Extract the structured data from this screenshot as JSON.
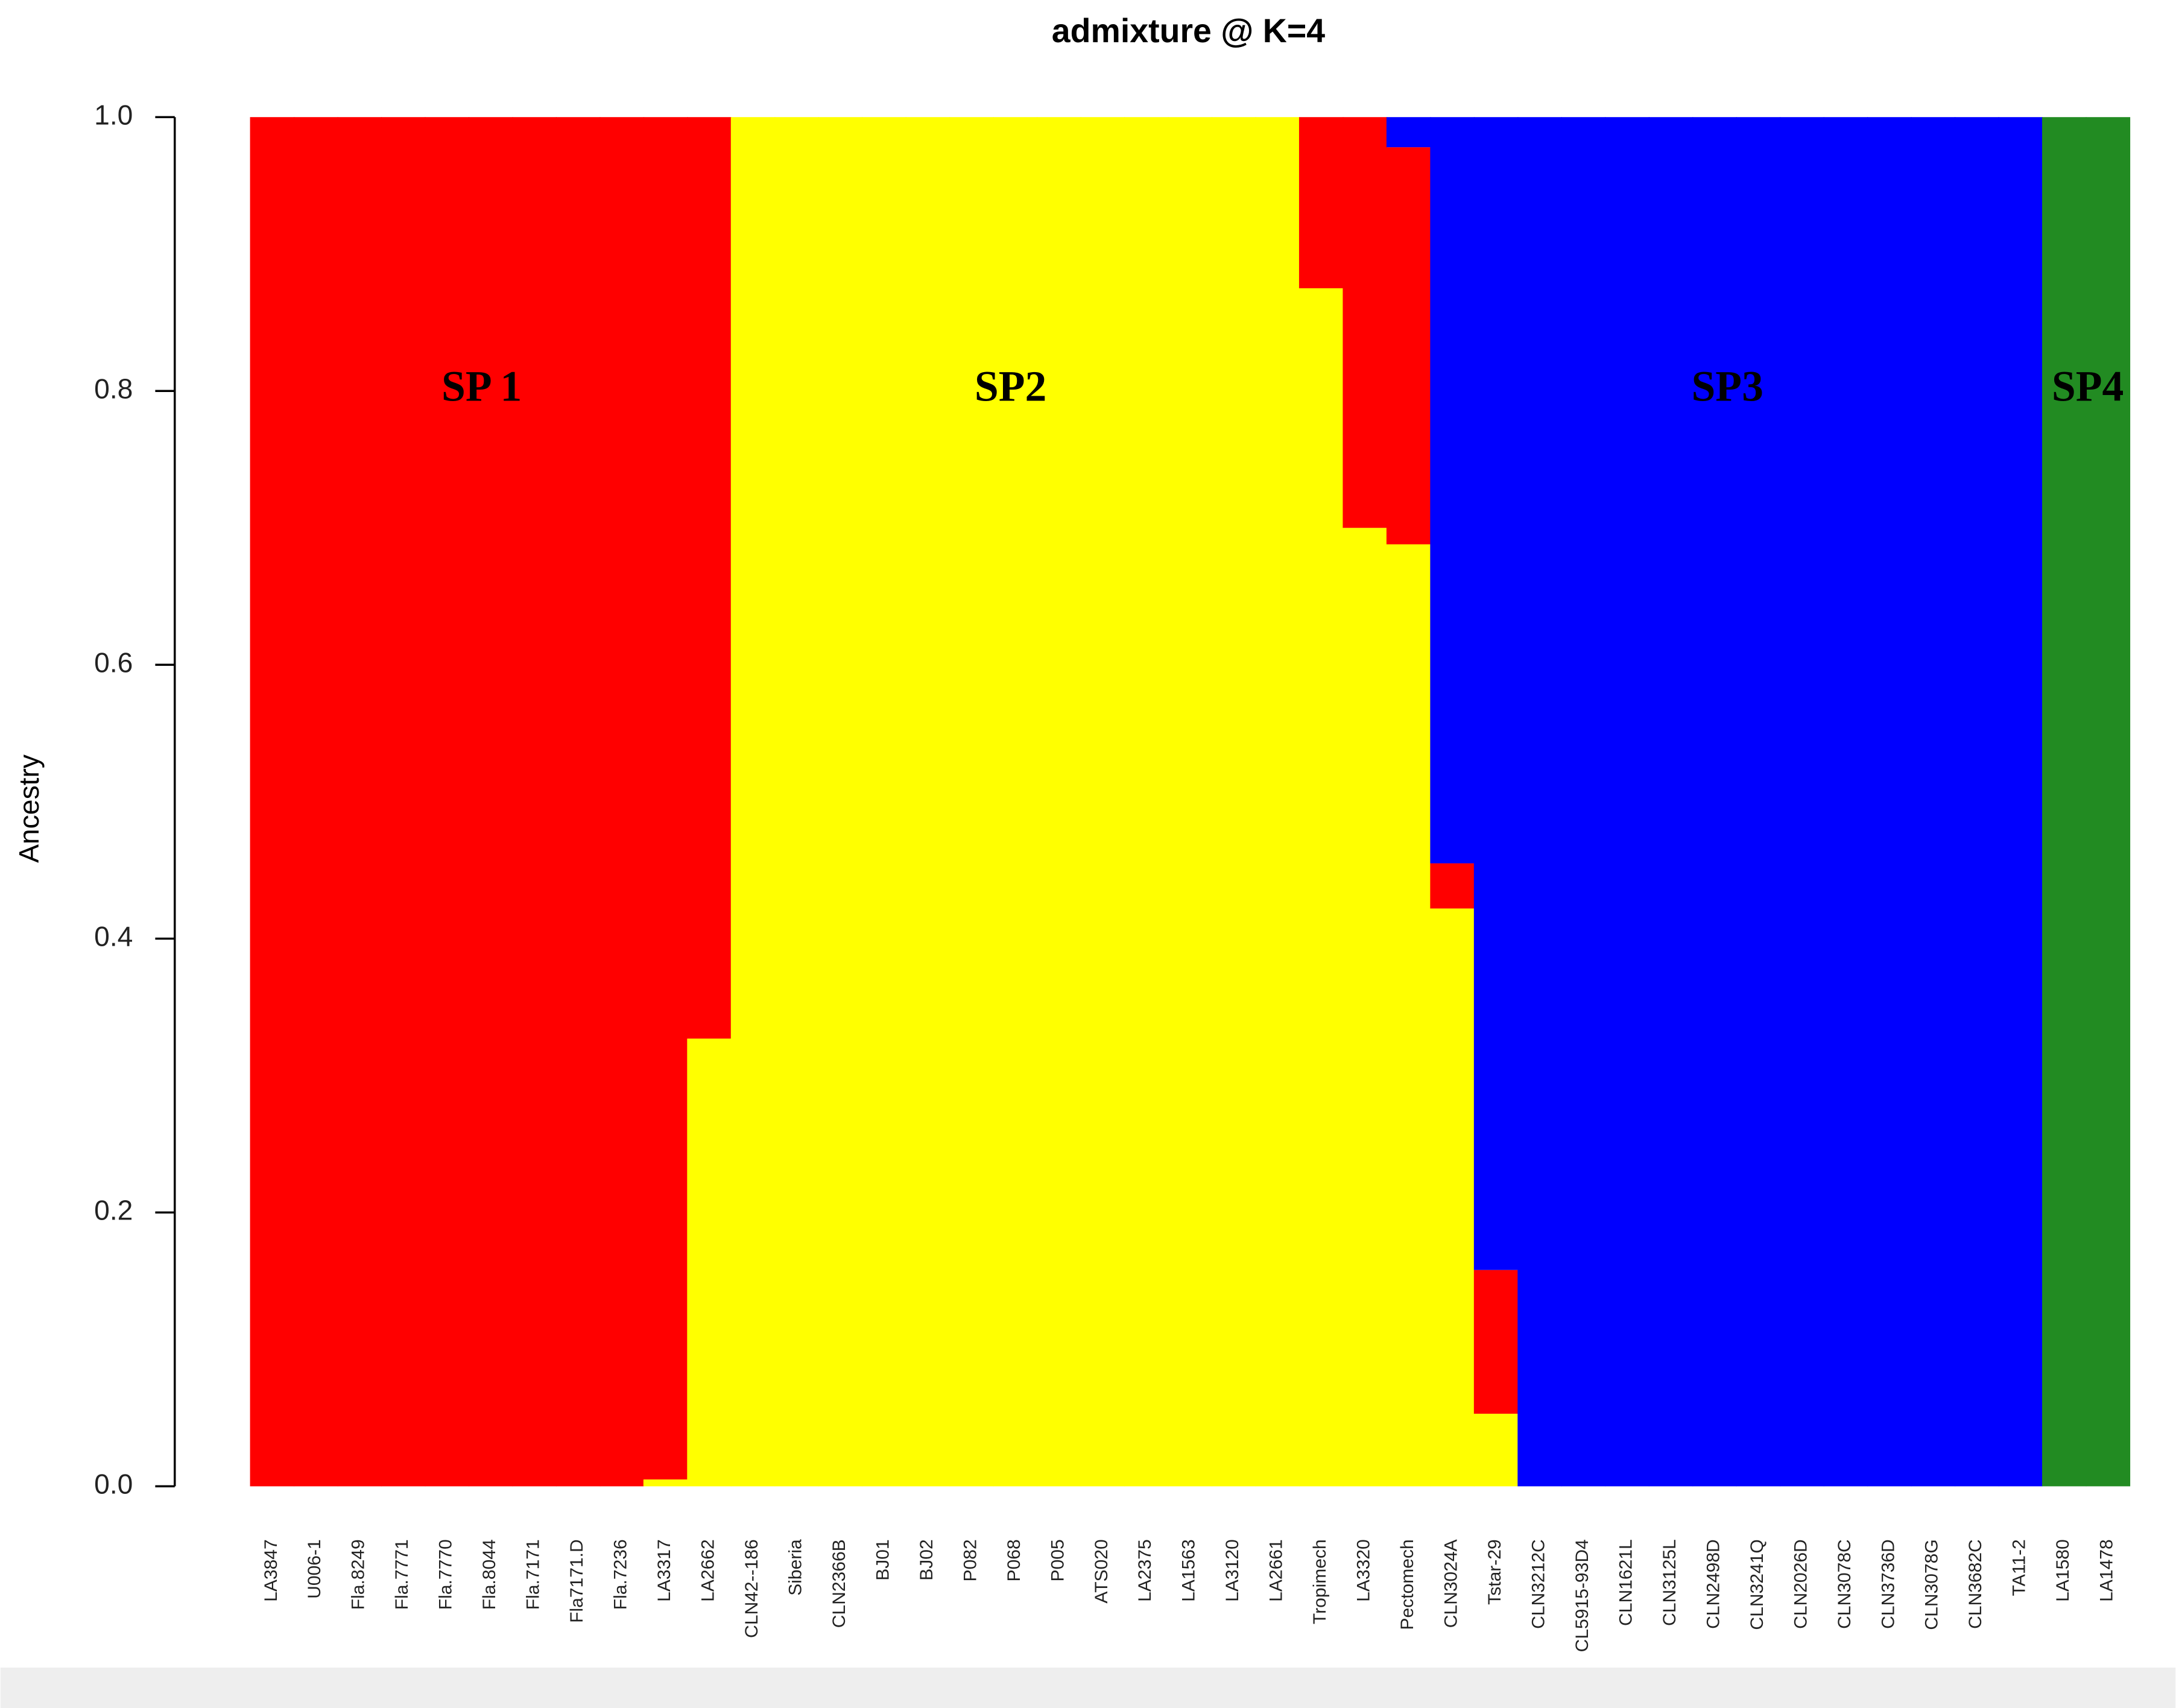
{
  "chart_data": {
    "type": "stacked_bar",
    "title": "admixture @ K=4",
    "ylabel": "Ancestry",
    "categories": [
      "LA3847",
      "U006-1",
      "Fla.8249",
      "Fla.7771",
      "Fla.7770",
      "Fla.8044",
      "Fla.7171",
      "Fla7171.D",
      "Fla.7236",
      "LA3317",
      "LA2662",
      "CLN42--186",
      "Siberia",
      "CLN2366B",
      "BJ01",
      "BJ02",
      "P082",
      "P068",
      "P005",
      "ATS020",
      "LA2375",
      "LA1563",
      "LA3120",
      "LA2661",
      "Tropimech",
      "LA3320",
      "Pectomech",
      "CLN3024A",
      "Tstar-29",
      "CLN3212C",
      "CL5915-93D4",
      "CLN1621L",
      "CLN3125L",
      "CLN2498D",
      "CLN3241Q",
      "CLN2026D",
      "CLN3078C",
      "CLN3736D",
      "CLN3078G",
      "CLN3682C",
      "TA11-2",
      "LA1580",
      "LA1478"
    ],
    "series": [
      {
        "color": "#ffff00",
        "values": [
          0,
          0,
          0,
          0,
          0,
          0,
          0,
          0,
          0,
          0.005,
          0.327,
          1,
          1,
          1,
          1,
          1,
          1,
          1,
          1,
          1,
          1,
          1,
          1,
          1,
          0.875,
          0.7,
          0.688,
          0.422,
          0.053,
          0,
          0,
          0,
          0,
          0,
          0,
          0,
          0,
          0,
          0,
          0,
          0,
          0,
          0
        ]
      },
      {
        "color": "#ff0000",
        "values": [
          1,
          1,
          1,
          1,
          1,
          1,
          1,
          1,
          1,
          0.995,
          0.673,
          0,
          0,
          0,
          0,
          0,
          0,
          0,
          0,
          0,
          0,
          0,
          0,
          0,
          0.125,
          0.3,
          0.29,
          0.033,
          0.105,
          0,
          0,
          0,
          0,
          0,
          0,
          0,
          0,
          0,
          0,
          0,
          0,
          0,
          0
        ]
      },
      {
        "color": "#0000ff",
        "values": [
          0,
          0,
          0,
          0,
          0,
          0,
          0,
          0,
          0,
          0,
          0,
          0,
          0,
          0,
          0,
          0,
          0,
          0,
          0,
          0,
          0,
          0,
          0,
          0,
          0,
          0,
          0.022,
          0.545,
          0.842,
          1,
          1,
          1,
          1,
          1,
          1,
          1,
          1,
          1,
          1,
          1,
          1,
          0,
          0
        ]
      },
      {
        "color": "#228b22",
        "values": [
          0,
          0,
          0,
          0,
          0,
          0,
          0,
          0,
          0,
          0,
          0,
          0,
          0,
          0,
          0,
          0,
          0,
          0,
          0,
          0,
          0,
          0,
          0,
          0,
          0,
          0,
          0,
          0,
          0,
          0,
          0,
          0,
          0,
          0,
          0,
          0,
          0,
          0,
          0,
          0,
          0,
          1,
          1
        ]
      }
    ],
    "annotations": [
      "SP 1",
      "SP2",
      "SP3",
      "SP4"
    ],
    "ylim": [
      0,
      1
    ],
    "yticks": [
      {
        "value": 0,
        "label": "0.0"
      },
      0.2,
      0.4,
      0.6,
      0.8,
      {
        "value": 1,
        "label": "1.0"
      }
    ]
  }
}
